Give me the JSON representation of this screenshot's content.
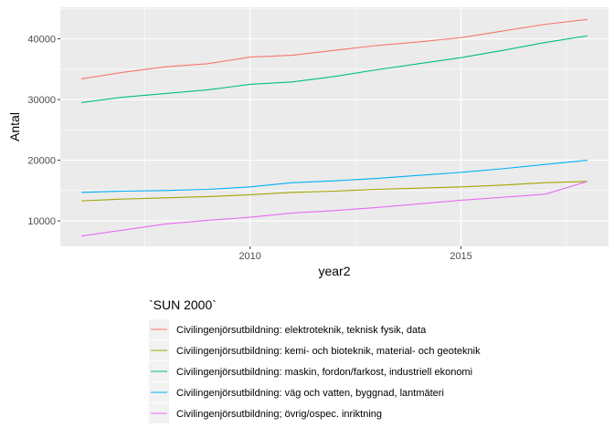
{
  "chart_data": {
    "type": "line",
    "xlabel": "year2",
    "ylabel": "Antal",
    "xlim": [
      2005.5,
      2018.5
    ],
    "ylim": [
      5800,
      45200
    ],
    "xticks": [
      2010,
      2015
    ],
    "xtick_labels": [
      "2010",
      "2015"
    ],
    "yticks": [
      10000,
      20000,
      30000,
      40000
    ],
    "ytick_labels": [
      "10000",
      "20000",
      "30000",
      "40000"
    ],
    "grid": true,
    "legend_title": "`SUN 2000`",
    "legend_position": "bottom",
    "x": [
      2006,
      2007,
      2008,
      2009,
      2010,
      2011,
      2012,
      2013,
      2014,
      2015,
      2016,
      2017,
      2018
    ],
    "series": [
      {
        "name": "Civilingenjörsutbildning: elektroteknik, teknisk fysik, data",
        "color": "#F8766D",
        "values": [
          33400,
          34500,
          35400,
          35900,
          37000,
          37300,
          38100,
          38900,
          39500,
          40200,
          41300,
          42400,
          43200
        ]
      },
      {
        "name": "Civilingenjörsutbildning: kemi- och bioteknik, material- och geoteknik",
        "color": "#A3A500",
        "values": [
          13300,
          13600,
          13800,
          14000,
          14300,
          14700,
          14900,
          15200,
          15400,
          15600,
          15900,
          16300,
          16500
        ]
      },
      {
        "name": "Civilingenjörsutbildning: maskin, fordon/farkost, industriell ekonomi",
        "color": "#00BF7D",
        "values": [
          29500,
          30400,
          31000,
          31600,
          32500,
          32900,
          33800,
          34900,
          35900,
          36900,
          38100,
          39400,
          40500
        ]
      },
      {
        "name": "Civilingenjörsutbildning: väg och vatten, byggnad, lantmäteri",
        "color": "#00B0F6",
        "values": [
          14700,
          14900,
          15000,
          15200,
          15600,
          16300,
          16600,
          17000,
          17500,
          18000,
          18600,
          19300,
          20000
        ]
      },
      {
        "name": "Civilingenjörsutbildning; övrig/ospec. inriktning",
        "color": "#E76BF3",
        "values": [
          7500,
          8500,
          9500,
          10100,
          10600,
          11300,
          11700,
          12200,
          12800,
          13400,
          13900,
          14400,
          16500
        ]
      }
    ]
  }
}
